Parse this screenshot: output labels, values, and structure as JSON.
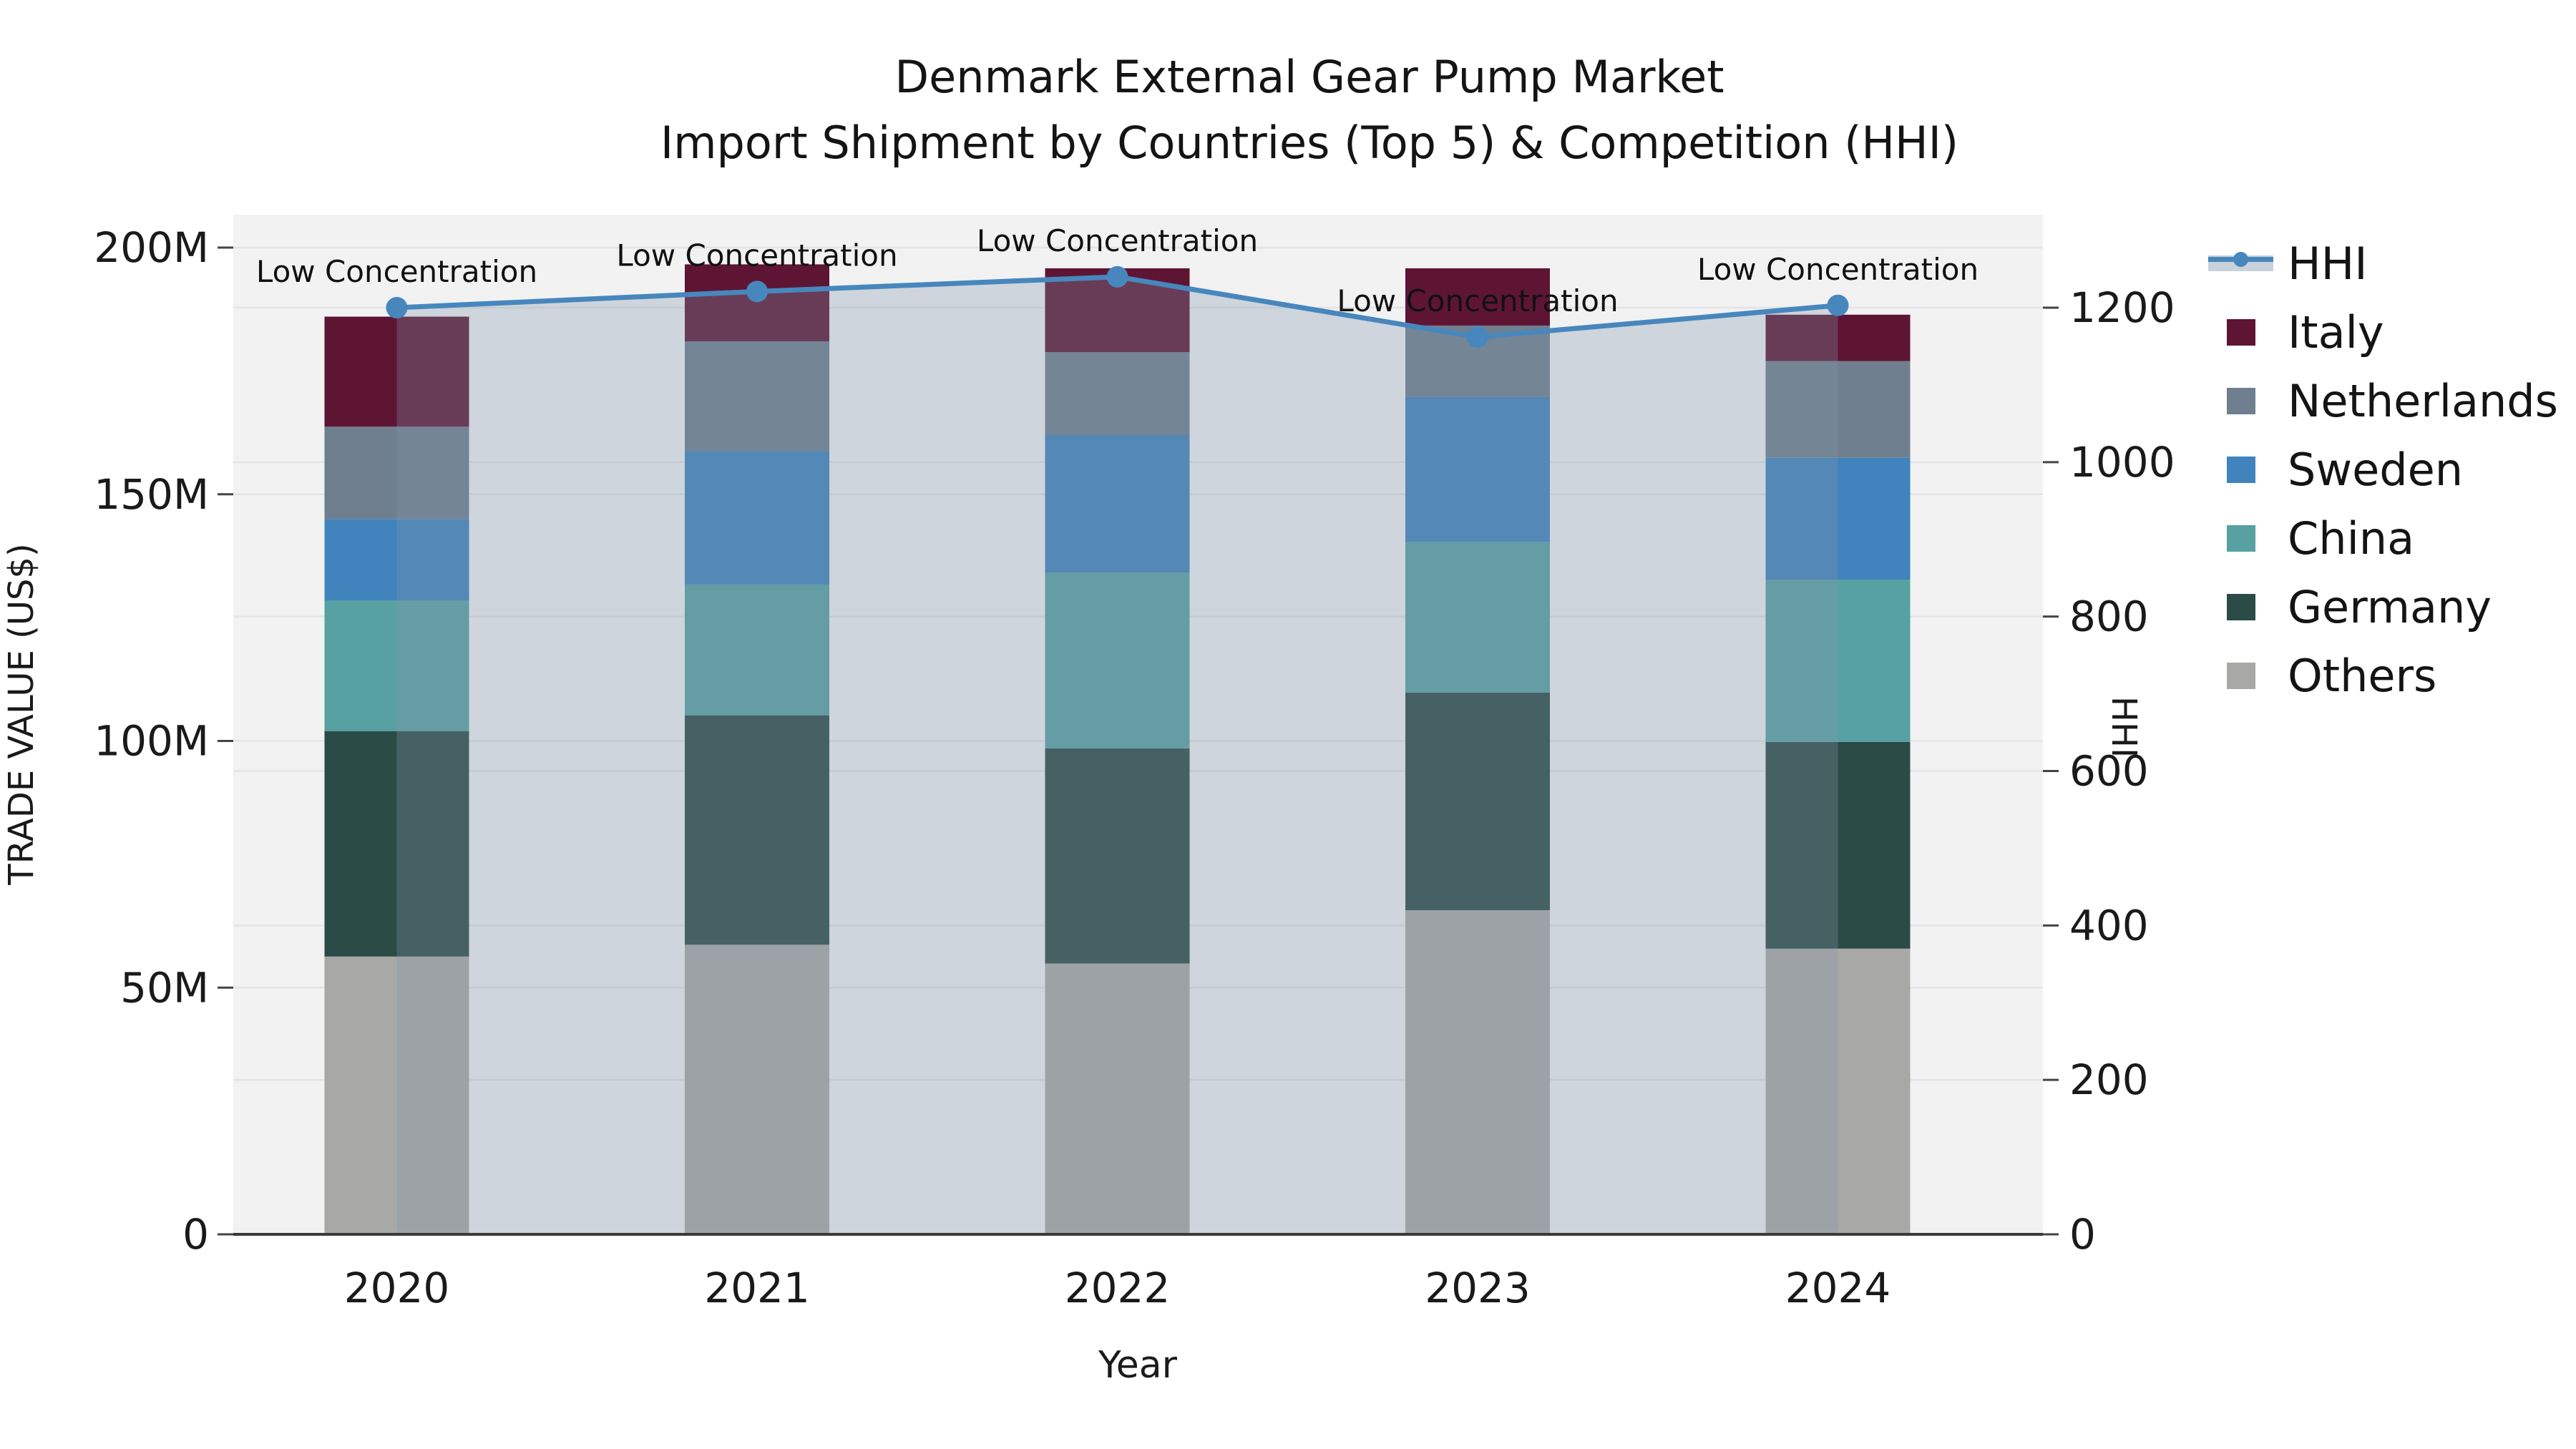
{
  "figure": {
    "title_line1": "Denmark External Gear Pump Market",
    "title_line2": "Import Shipment by Countries (Top 5) & Competition (HHI)"
  },
  "axes": {
    "x_label": "Year",
    "y_left_label": "TRADE VALUE (US$)",
    "y_right_label": "HHI"
  },
  "legend": {
    "items": [
      {
        "label": "HHI",
        "kind": "line",
        "color": "#4787bd",
        "band_color": "#c9d2dc"
      },
      {
        "label": "Italy",
        "kind": "patch",
        "color": "#5e1534"
      },
      {
        "label": "Netherlands",
        "kind": "patch",
        "color": "#6f7f8f"
      },
      {
        "label": "Sweden",
        "kind": "patch",
        "color": "#4083bd"
      },
      {
        "label": "China",
        "kind": "patch",
        "color": "#57a1a2"
      },
      {
        "label": "Germany",
        "kind": "patch",
        "color": "#2b4b46"
      },
      {
        "label": "Others",
        "kind": "patch",
        "color": "#a8a8a6"
      }
    ]
  },
  "chart_data": {
    "type": "bar",
    "subtype": "stacked-bars-with-line",
    "title": "Denmark External Gear Pump Market",
    "subtitle": "Import Shipment by Countries (Top 5) & Competition (HHI)",
    "xlabel": "Year",
    "ylabel_left": "TRADE VALUE (US$)",
    "ylabel_right": "HHI",
    "unit": "million US$",
    "categories": [
      "2020",
      "2021",
      "2022",
      "2023",
      "2024"
    ],
    "series": [
      {
        "name": "Others",
        "color": "#a8a8a6",
        "values": [
          56.3,
          58.7,
          54.9,
          65.7,
          57.9
        ]
      },
      {
        "name": "Germany",
        "color": "#2b4b46",
        "values": [
          45.7,
          46.5,
          43.6,
          44.1,
          41.9
        ]
      },
      {
        "name": "China",
        "color": "#57a1a2",
        "values": [
          26.5,
          26.5,
          35.6,
          30.5,
          32.9
        ]
      },
      {
        "name": "Sweden",
        "color": "#4083bd",
        "values": [
          16.5,
          27.1,
          27.9,
          29.4,
          24.7
        ]
      },
      {
        "name": "Netherlands",
        "color": "#6f7f8f",
        "values": [
          18.7,
          22.2,
          16.8,
          14.5,
          19.6
        ]
      },
      {
        "name": "Italy",
        "color": "#5e1534",
        "values": [
          22.3,
          15.6,
          17.0,
          11.6,
          9.4
        ]
      }
    ],
    "stack_totals": [
      186.0,
      196.6,
      195.8,
      195.8,
      186.4
    ],
    "line_series": {
      "name": "HHI",
      "color": "#4787bd",
      "area_fill": "rgba(129,149,169,0.31)",
      "values": [
        1200,
        1221,
        1240,
        1162,
        1203
      ]
    },
    "annotation_label": "Low Concentration",
    "y_left_ticks": {
      "values": [
        0,
        50,
        100,
        150,
        200
      ],
      "labels": [
        "0",
        "50M",
        "100M",
        "150M",
        "200M"
      ]
    },
    "y_right_ticks": {
      "values": [
        0,
        200,
        400,
        600,
        800,
        1000,
        1200
      ],
      "labels": [
        "0",
        "200",
        "400",
        "600",
        "800",
        "1000",
        "1200"
      ]
    },
    "ylim_left_millions": [
      0,
      206.7
    ],
    "ylim_right": [
      0,
      1320
    ],
    "grid": true,
    "legend_position": "right",
    "plot_bg": "#f2f2f3",
    "grid_color": "#e3e4e5",
    "spine_color": "#3a3a3a",
    "tick_color": "#444444",
    "text_color": "#1a1a1a"
  }
}
